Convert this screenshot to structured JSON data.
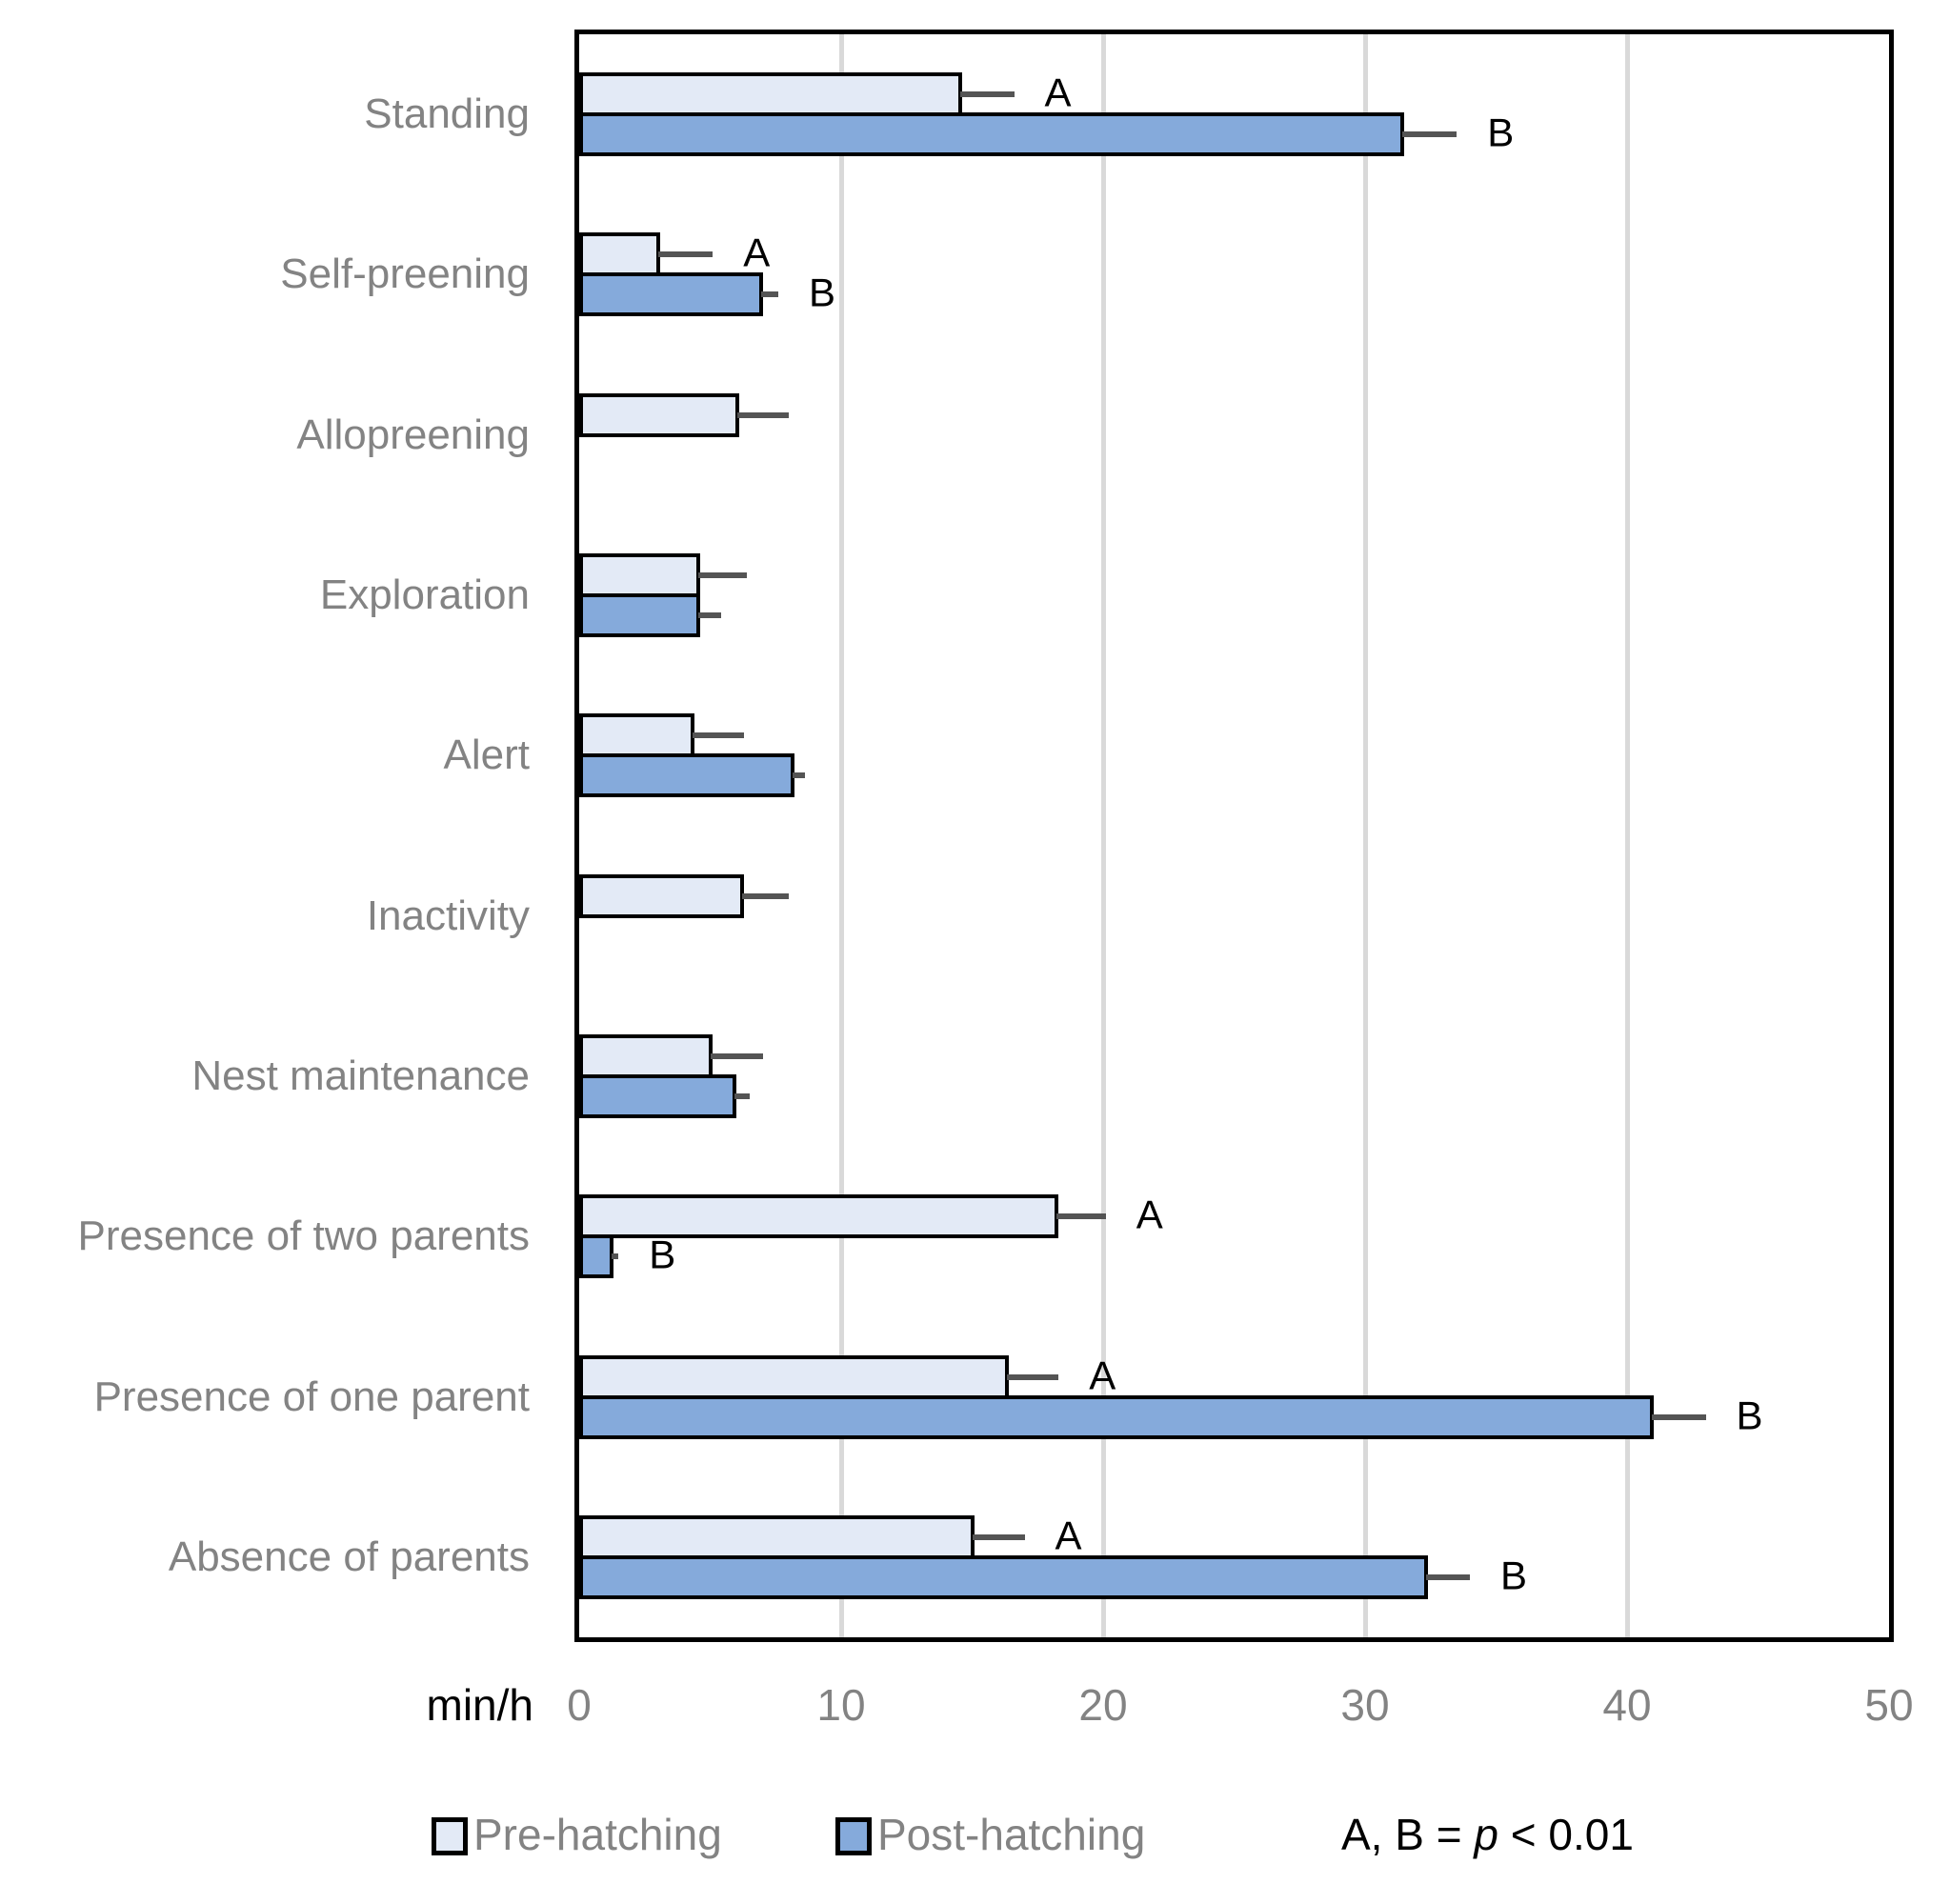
{
  "chart_data": {
    "type": "bar",
    "orientation": "horizontal",
    "title": "",
    "xlabel": "min/h",
    "xlim": [
      0,
      50
    ],
    "xticks": [
      0,
      10,
      20,
      30,
      40,
      50
    ],
    "grid": "vertical-light-gray",
    "legend_position": "bottom",
    "series_names": [
      "Pre-hatching",
      "Post-hatching"
    ],
    "categories": [
      {
        "label": "Standing",
        "pre": {
          "value": 14.6,
          "error": 2.0,
          "sig": "A"
        },
        "post": {
          "value": 31.5,
          "error": 2.0,
          "sig": "B"
        }
      },
      {
        "label": "Self-preening",
        "pre": {
          "value": 3.1,
          "error": 2.0,
          "sig": "A"
        },
        "post": {
          "value": 7.0,
          "error": 0.6,
          "sig": "B"
        }
      },
      {
        "label": "Allopreening",
        "pre": {
          "value": 6.1,
          "error": 1.9,
          "sig": ""
        },
        "post": null
      },
      {
        "label": "Exploration",
        "pre": {
          "value": 4.6,
          "error": 1.8,
          "sig": ""
        },
        "post": {
          "value": 4.6,
          "error": 0.8,
          "sig": ""
        }
      },
      {
        "label": "Alert",
        "pre": {
          "value": 4.4,
          "error": 1.9,
          "sig": ""
        },
        "post": {
          "value": 8.2,
          "error": 0.4,
          "sig": ""
        }
      },
      {
        "label": "Inactivity",
        "pre": {
          "value": 6.3,
          "error": 1.7,
          "sig": ""
        },
        "post": null
      },
      {
        "label": "Nest maintenance",
        "pre": {
          "value": 5.1,
          "error": 1.9,
          "sig": ""
        },
        "post": {
          "value": 6.0,
          "error": 0.5,
          "sig": ""
        }
      },
      {
        "label": "Presence of two parents",
        "pre": {
          "value": 18.3,
          "error": 1.8,
          "sig": "A"
        },
        "post": {
          "value": 1.3,
          "error": 0.2,
          "sig": "B"
        }
      },
      {
        "label": "Presence of  one parent",
        "pre": {
          "value": 16.4,
          "error": 1.9,
          "sig": "A"
        },
        "post": {
          "value": 41.0,
          "error": 2.0,
          "sig": "B"
        }
      },
      {
        "label": "Absence of parents",
        "pre": {
          "value": 15.1,
          "error": 1.9,
          "sig": "A"
        },
        "post": {
          "value": 32.4,
          "error": 1.6,
          "sig": "B"
        }
      }
    ],
    "significance_note": {
      "prefix": "A, B = ",
      "italic": "p",
      "suffix": " < 0.01"
    }
  },
  "legend": {
    "items": [
      {
        "label": "Pre-hatching"
      },
      {
        "label": "Post-hatching"
      }
    ]
  },
  "colors": {
    "pre_fill": "#e3eaf6",
    "post_fill": "#85aadb",
    "bar_border": "#000000",
    "gridline": "#d9d9d9",
    "error_bar": "#545454",
    "gray_text": "#838383",
    "black_text": "#000000"
  }
}
